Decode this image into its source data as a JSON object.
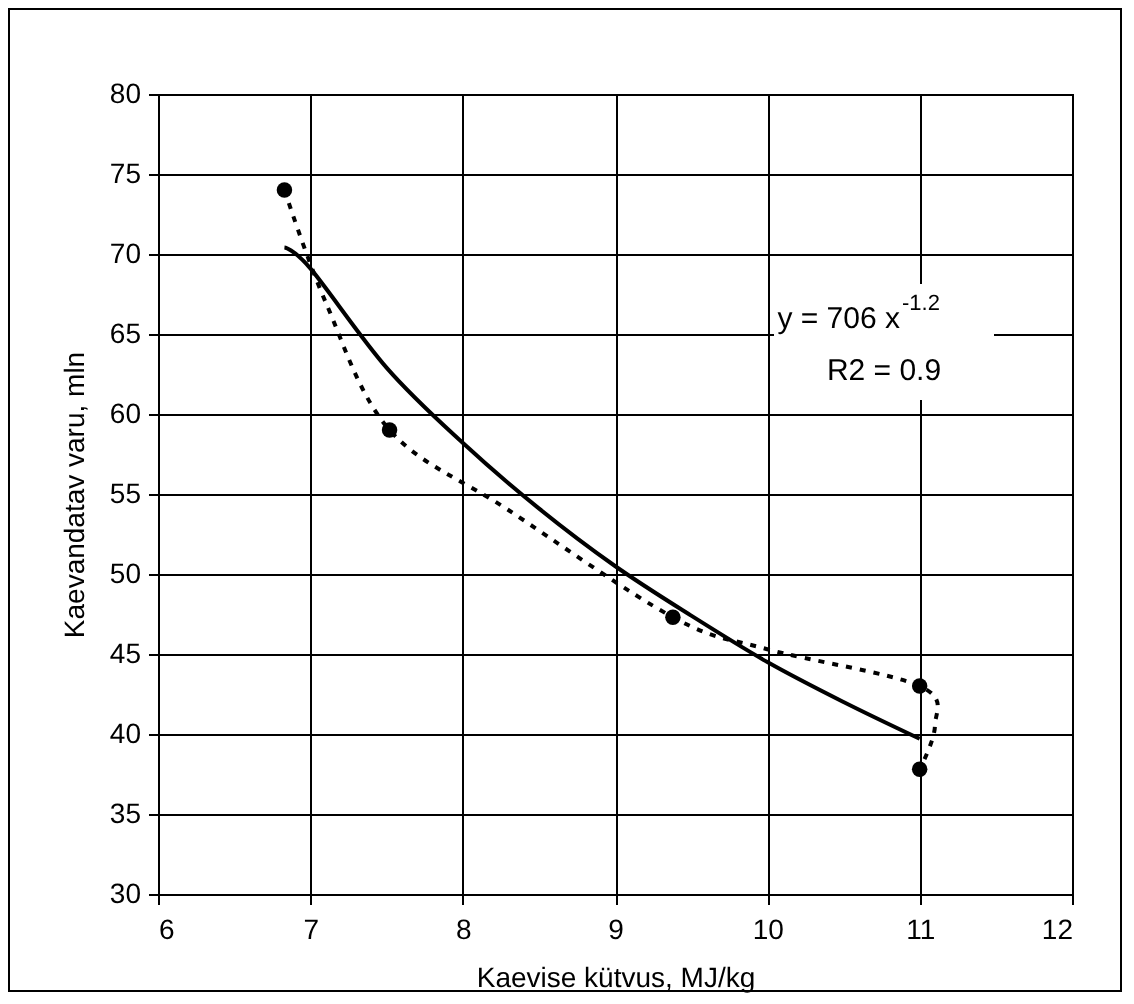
{
  "chart_data": {
    "type": "scatter",
    "xlabel": "Kaevise kütvus, MJ/kg",
    "ylabel": "Kaevandatav varu, mln",
    "xlim": [
      6,
      12
    ],
    "xticks": [
      6,
      7,
      8,
      9,
      10,
      11,
      12
    ],
    "ylim": [
      30,
      80
    ],
    "yticks": [
      30,
      35,
      40,
      45,
      50,
      55,
      60,
      65,
      70,
      75,
      80
    ],
    "grid": true,
    "annotations": [
      "y = 706 x$^{-1.2}$",
      "R2 = 0.9"
    ],
    "series": [
      {
        "marker": "circle",
        "color": "#000000",
        "x": [
          6.83,
          7.52,
          9.38,
          11,
          11
        ],
        "values": [
          74,
          59,
          47.3,
          43,
          37.8
        ]
      },
      {
        "type": "line",
        "line_style": "dotted",
        "color": "#000000",
        "x": [
          6.83,
          7.1,
          7.52,
          8.3,
          9.38,
          10,
          11,
          11.1,
          11
        ],
        "values": [
          74,
          67,
          59,
          54,
          47.3,
          45.3,
          43,
          40.5,
          37.8
        ]
      },
      {
        "type": "line",
        "line_style": "solid",
        "color": "#000000",
        "x": [
          6.83,
          7,
          7.5,
          8,
          8.5,
          9,
          9.5,
          10,
          10.5,
          11
        ],
        "values": [
          70.4,
          69.1,
          62.9,
          58.2,
          54.1,
          50.5,
          47.4,
          44.5,
          42,
          39.7
        ]
      }
    ]
  }
}
